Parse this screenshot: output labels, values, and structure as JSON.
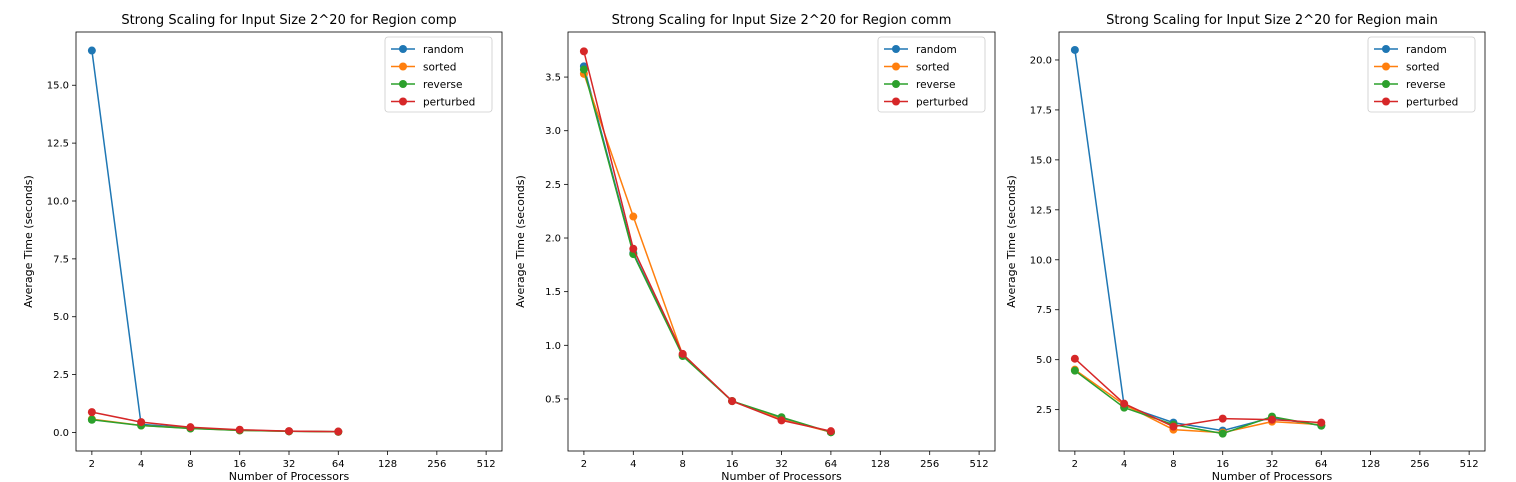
{
  "colors": {
    "random": "#1f77b4",
    "sorted": "#ff7f0e",
    "reverse": "#2ca02c",
    "perturbed": "#d62728"
  },
  "chart_data": [
    {
      "type": "line",
      "title": "Strong Scaling for Input Size 2^20 for Region comp",
      "xlabel": "Number of Processors",
      "ylabel": "Average Time (seconds)",
      "x_scale": "log2",
      "x_ticks": [
        "2",
        "4",
        "8",
        "16",
        "32",
        "64",
        "128",
        "256",
        "512"
      ],
      "y_ticks": [
        "0.0",
        "2.5",
        "5.0",
        "7.5",
        "10.0",
        "12.5",
        "15.0"
      ],
      "ylim": [
        -0.8,
        17.3
      ],
      "legend_position": "top-right",
      "x": [
        2,
        4,
        8,
        16,
        32,
        64
      ],
      "series": [
        {
          "name": "random",
          "values": [
            16.5,
            0.35,
            0.2,
            0.1,
            0.05,
            0.03
          ]
        },
        {
          "name": "sorted",
          "values": [
            0.58,
            0.3,
            0.18,
            0.09,
            0.05,
            0.03
          ]
        },
        {
          "name": "reverse",
          "values": [
            0.55,
            0.3,
            0.17,
            0.09,
            0.05,
            0.03
          ]
        },
        {
          "name": "perturbed",
          "values": [
            0.88,
            0.45,
            0.23,
            0.12,
            0.06,
            0.04
          ]
        }
      ]
    },
    {
      "type": "line",
      "title": "Strong Scaling for Input Size 2^20 for Region comm",
      "xlabel": "Number of Processors",
      "ylabel": "Average Time (seconds)",
      "x_scale": "log2",
      "x_ticks": [
        "2",
        "4",
        "8",
        "16",
        "32",
        "64",
        "128",
        "256",
        "512"
      ],
      "y_ticks": [
        "0.5",
        "1.0",
        "1.5",
        "2.0",
        "2.5",
        "3.0",
        "3.5"
      ],
      "ylim": [
        0.015,
        3.92
      ],
      "legend_position": "top-right",
      "x": [
        2,
        4,
        8,
        16,
        32,
        64
      ],
      "series": [
        {
          "name": "random",
          "values": [
            3.6,
            1.86,
            0.91,
            0.48,
            0.32,
            0.19
          ]
        },
        {
          "name": "sorted",
          "values": [
            3.53,
            2.2,
            0.91,
            0.48,
            0.31,
            0.19
          ]
        },
        {
          "name": "reverse",
          "values": [
            3.57,
            1.85,
            0.9,
            0.48,
            0.33,
            0.19
          ]
        },
        {
          "name": "perturbed",
          "values": [
            3.74,
            1.9,
            0.92,
            0.48,
            0.3,
            0.2
          ]
        }
      ]
    },
    {
      "type": "line",
      "title": "Strong Scaling for Input Size 2^20 for Region main",
      "xlabel": "Number of Processors",
      "ylabel": "Average Time (seconds)",
      "x_scale": "log2",
      "x_ticks": [
        "2",
        "4",
        "8",
        "16",
        "32",
        "64",
        "128",
        "256",
        "512"
      ],
      "y_ticks": [
        "2.5",
        "5.0",
        "7.5",
        "10.0",
        "12.5",
        "15.0",
        "17.5",
        "20.0"
      ],
      "ylim": [
        0.43,
        21.4
      ],
      "legend_position": "top-right",
      "x": [
        2,
        4,
        8,
        16,
        32,
        64
      ],
      "series": [
        {
          "name": "random",
          "values": [
            20.5,
            2.7,
            1.85,
            1.45,
            2.1,
            1.7
          ]
        },
        {
          "name": "sorted",
          "values": [
            4.5,
            2.75,
            1.5,
            1.35,
            1.9,
            1.75
          ]
        },
        {
          "name": "reverse",
          "values": [
            4.45,
            2.6,
            1.75,
            1.3,
            2.15,
            1.7
          ]
        },
        {
          "name": "perturbed",
          "values": [
            5.05,
            2.8,
            1.65,
            2.05,
            2.0,
            1.85
          ]
        }
      ]
    }
  ]
}
